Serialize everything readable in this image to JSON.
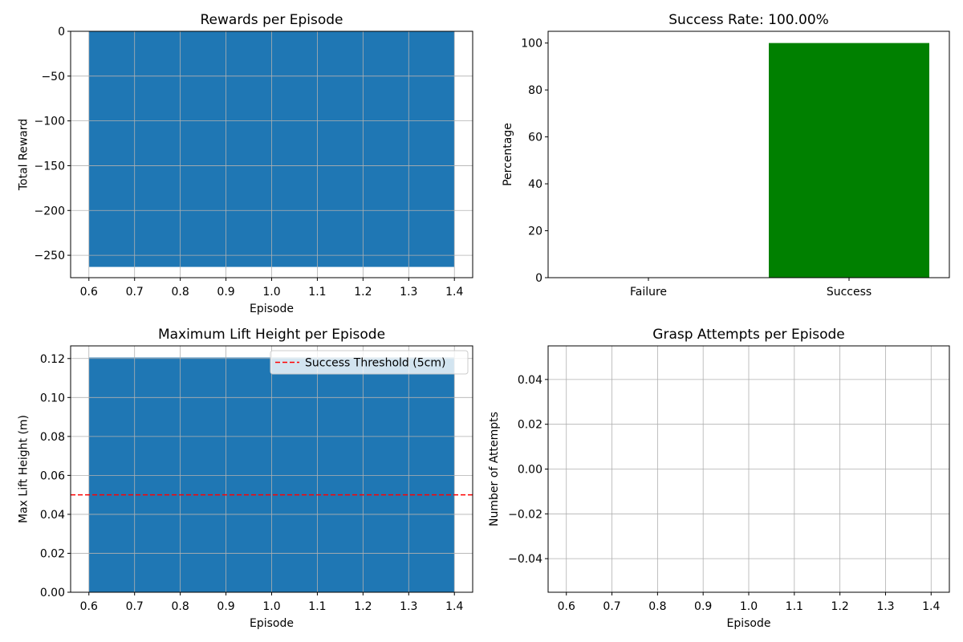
{
  "figure": {
    "background": "#ffffff"
  },
  "chart_data": [
    {
      "id": "rewards",
      "type": "bar",
      "title": "Rewards per Episode",
      "xlabel": "Episode",
      "ylabel": "Total Reward",
      "x": [
        1
      ],
      "values": [
        -263
      ],
      "bar_width": 0.8,
      "color": "#1f77b4",
      "xlim": [
        0.56,
        1.44
      ],
      "ylim": [
        -275,
        0
      ],
      "xticks": [
        0.6,
        0.7,
        0.8,
        0.9,
        1.0,
        1.1,
        1.2,
        1.3,
        1.4
      ],
      "xtick_labels": [
        "0.6",
        "0.7",
        "0.8",
        "0.9",
        "1.0",
        "1.1",
        "1.2",
        "1.3",
        "1.4"
      ],
      "yticks": [
        0,
        -50,
        -100,
        -150,
        -200,
        -250
      ],
      "ytick_labels": [
        "0",
        "−50",
        "−100",
        "−150",
        "−200",
        "−250"
      ],
      "grid": true
    },
    {
      "id": "success",
      "type": "bar",
      "title": "Success Rate: 100.00%",
      "xlabel": "",
      "ylabel": "Percentage",
      "categories": [
        "Failure",
        "Success"
      ],
      "x": [
        0,
        1
      ],
      "values": [
        0,
        100
      ],
      "bar_width": 0.8,
      "colors": [
        "#ff0000",
        "#008000"
      ],
      "xlim": [
        -0.5,
        1.5
      ],
      "ylim": [
        0,
        105
      ],
      "yticks": [
        0,
        20,
        40,
        60,
        80,
        100
      ],
      "ytick_labels": [
        "0",
        "20",
        "40",
        "60",
        "80",
        "100"
      ],
      "grid": false
    },
    {
      "id": "lift",
      "type": "bar",
      "title": "Maximum Lift Height per Episode",
      "xlabel": "Episode",
      "ylabel": "Max Lift Height (m)",
      "x": [
        1
      ],
      "values": [
        0.1205
      ],
      "bar_width": 0.8,
      "color": "#1f77b4",
      "xlim": [
        0.56,
        1.44
      ],
      "ylim": [
        0,
        0.1265
      ],
      "xticks": [
        0.6,
        0.7,
        0.8,
        0.9,
        1.0,
        1.1,
        1.2,
        1.3,
        1.4
      ],
      "xtick_labels": [
        "0.6",
        "0.7",
        "0.8",
        "0.9",
        "1.0",
        "1.1",
        "1.2",
        "1.3",
        "1.4"
      ],
      "yticks": [
        0,
        0.02,
        0.04,
        0.06,
        0.08,
        0.1,
        0.12
      ],
      "ytick_labels": [
        "0.00",
        "0.02",
        "0.04",
        "0.06",
        "0.08",
        "0.10",
        "0.12"
      ],
      "hline": {
        "y": 0.05,
        "color": "#ff0000",
        "label": "Success Threshold (5cm)"
      },
      "legend": "top-right",
      "grid": true
    },
    {
      "id": "grasp",
      "type": "bar",
      "title": "Grasp Attempts per Episode",
      "xlabel": "Episode",
      "ylabel": "Number of Attempts",
      "x": [
        1
      ],
      "values": [
        0
      ],
      "bar_width": 0.8,
      "color": "#1f77b4",
      "xlim": [
        0.56,
        1.44
      ],
      "ylim": [
        -0.055,
        0.055
      ],
      "xticks": [
        0.6,
        0.7,
        0.8,
        0.9,
        1.0,
        1.1,
        1.2,
        1.3,
        1.4
      ],
      "xtick_labels": [
        "0.6",
        "0.7",
        "0.8",
        "0.9",
        "1.0",
        "1.1",
        "1.2",
        "1.3",
        "1.4"
      ],
      "yticks": [
        0.04,
        0.02,
        0.0,
        -0.02,
        -0.04
      ],
      "ytick_labels": [
        "0.04",
        "0.02",
        "0.00",
        "−0.02",
        "−0.04"
      ],
      "grid": true
    }
  ]
}
